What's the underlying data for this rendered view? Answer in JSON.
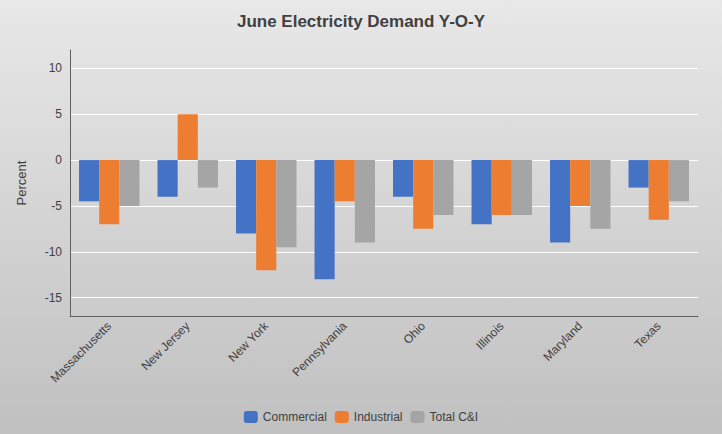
{
  "chart_data": {
    "type": "bar",
    "title": "June Electricity Demand Y-O-Y",
    "ylabel": "Percent",
    "categories": [
      "Massachusetts",
      "New Jersey",
      "New York",
      "Pennsylvania",
      "Ohio",
      "Illinois",
      "Maryland",
      "Texas"
    ],
    "series": [
      {
        "name": "Commercial",
        "color": "#4472C4",
        "values": [
          -4.5,
          -4.0,
          -8.0,
          -13.0,
          -4.0,
          -7.0,
          -9.0,
          -3.0
        ]
      },
      {
        "name": "Industrial",
        "color": "#ED7D31",
        "values": [
          -7.0,
          5.0,
          -12.0,
          -4.5,
          -7.5,
          -6.0,
          -5.0,
          -6.5
        ]
      },
      {
        "name": "Total C&I",
        "color": "#A5A5A5",
        "values": [
          -5.0,
          -3.0,
          -9.5,
          -9.0,
          -6.0,
          -6.0,
          -7.5,
          -4.5
        ]
      }
    ],
    "ylim": [
      -17,
      12
    ],
    "yticks": [
      -15,
      -10,
      -5,
      0,
      5,
      10
    ],
    "grid": true,
    "legend": "bottom"
  }
}
